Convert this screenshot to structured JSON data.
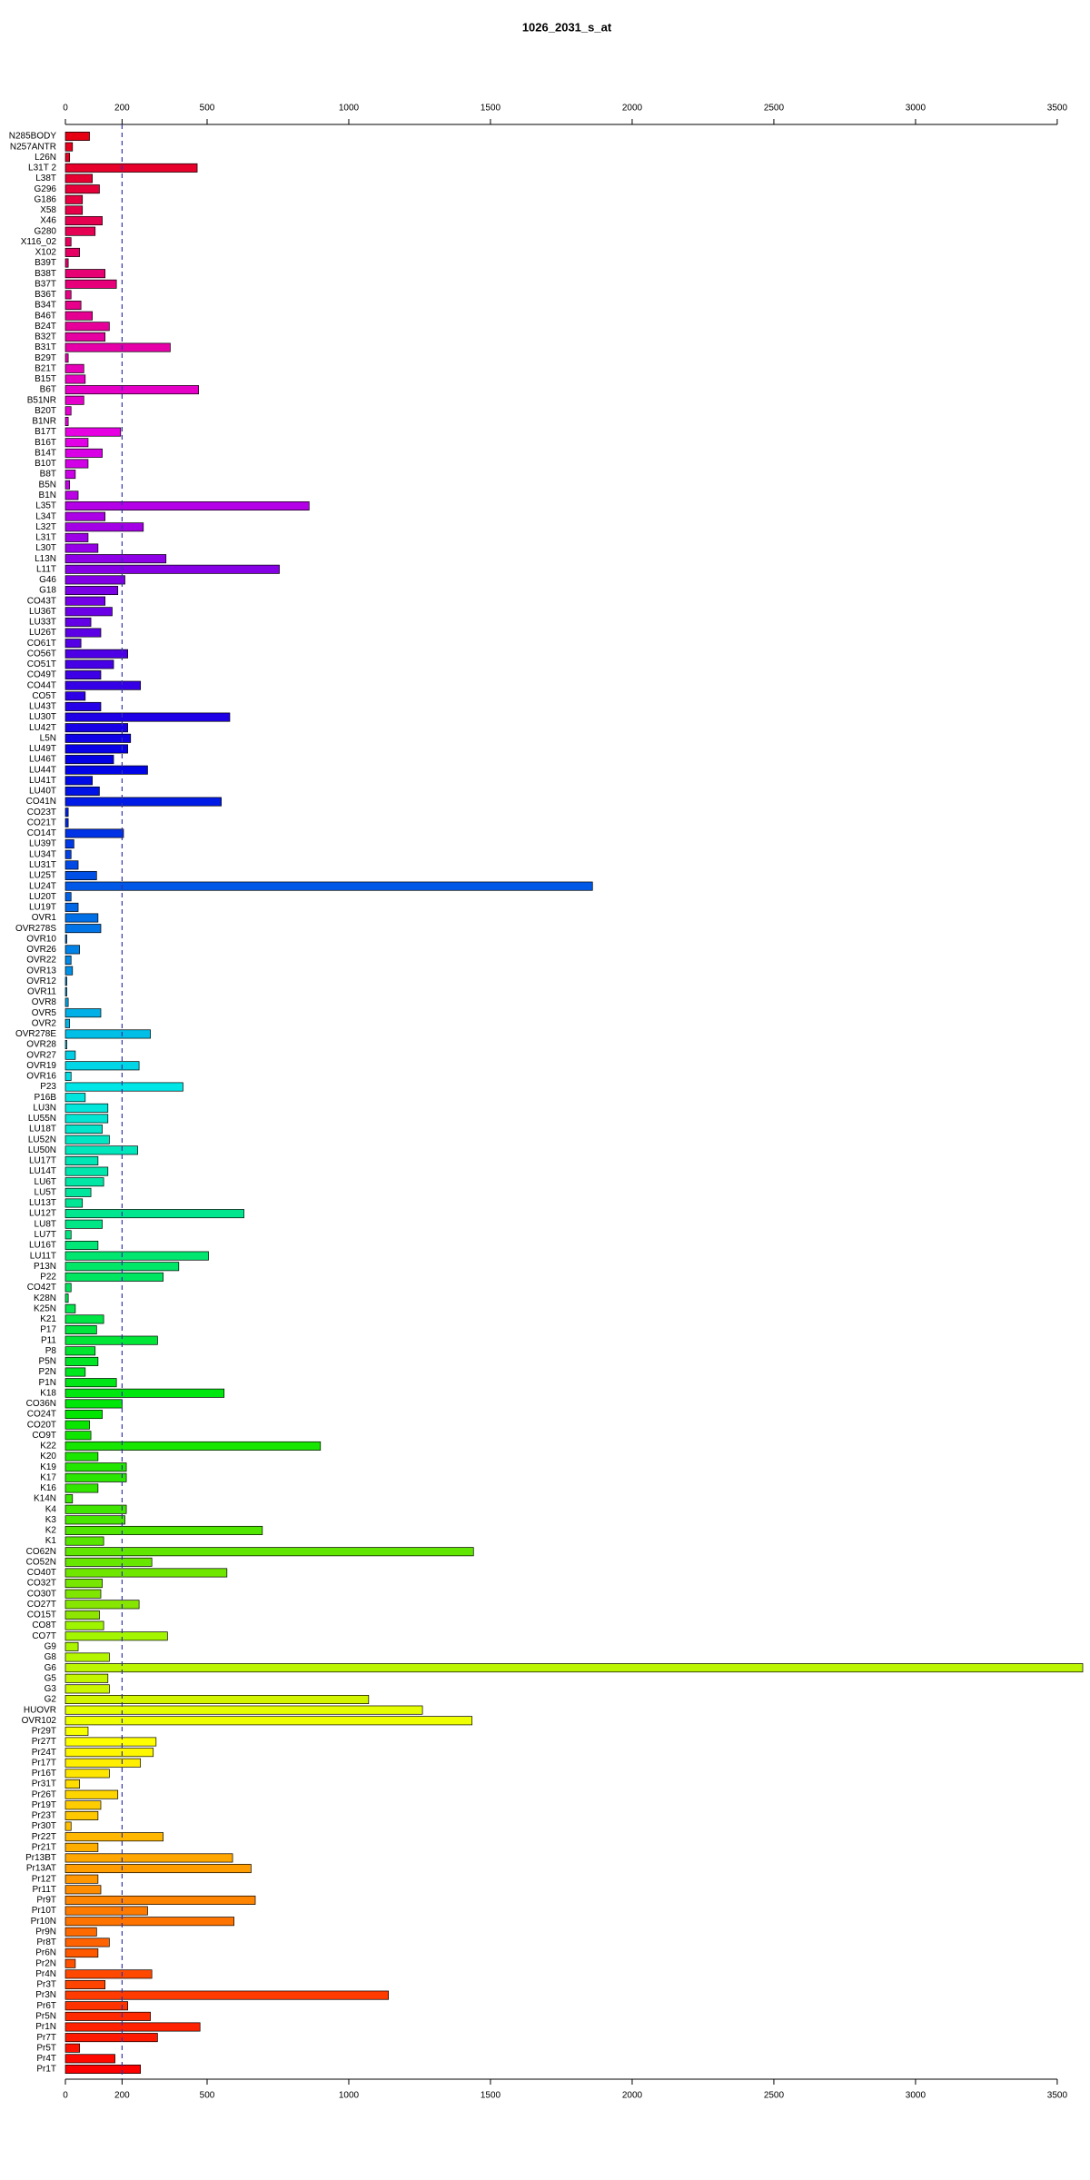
{
  "chart_data": {
    "type": "barh",
    "title": "1026_2031_s_at",
    "categories": [
      "N285BODY",
      "N257ANTR",
      "L26N",
      "L31T 2",
      "L38T",
      "G296",
      "G186",
      "X58",
      "X46",
      "G280",
      "X116_02",
      "X102",
      "B39T",
      "B38T",
      "B37T",
      "B36T",
      "B34T",
      "B46T",
      "B24T",
      "B32T",
      "B31T",
      "B29T",
      "B21T",
      "B15T",
      "B6T",
      "B51NR",
      "B20T",
      "B1NR",
      "B17T",
      "B16T",
      "B14T",
      "B10T",
      "B8T",
      "B5N",
      "B1N",
      "L35T",
      "L34T",
      "L32T",
      "L31T",
      "L30T",
      "L13N",
      "L11T",
      "G46",
      "G18",
      "CO43T",
      "LU36T",
      "LU33T",
      "LU26T",
      "CO61T",
      "CO56T",
      "CO51T",
      "CO49T",
      "CO44T",
      "CO5T",
      "LU43T",
      "LU30T",
      "LU42T",
      "L5N",
      "LU49T",
      "LU46T",
      "LU44T",
      "LU41T",
      "LU40T",
      "CO41N",
      "CO23T",
      "CO21T",
      "CO14T",
      "LU39T",
      "LU34T",
      "LU31T",
      "LU25T",
      "LU24T",
      "LU20T",
      "LU19T",
      "OVR1",
      "OVR278S",
      "OVR10",
      "OVR26",
      "OVR22",
      "OVR13",
      "OVR12",
      "OVR11",
      "OVR8",
      "OVR5",
      "OVR2",
      "OVR278E",
      "OVR28",
      "OVR27",
      "OVR19",
      "OVR16",
      "P23",
      "P16B",
      "LU3N",
      "LU55N",
      "LU18T",
      "LU52N",
      "LU50N",
      "LU17T",
      "LU14T",
      "LU6T",
      "LU5T",
      "LU13T",
      "LU12T",
      "LU8T",
      "LU7T",
      "LU16T",
      "LU11T",
      "P13N",
      "P22",
      "CO42T",
      "K28N",
      "K25N",
      "K21",
      "P17",
      "P11",
      "P8",
      "P5N",
      "P2N",
      "P1N",
      "K18",
      "CO36N",
      "CO24T",
      "CO20T",
      "CO9T",
      "K22",
      "K20",
      "K19",
      "K17",
      "K16",
      "K14N",
      "K4",
      "K3",
      "K2",
      "K1",
      "CO62N",
      "CO52N",
      "CO40T",
      "CO32T",
      "CO30T",
      "CO27T",
      "CO15T",
      "CO8T",
      "CO7T",
      "G9",
      "G8",
      "G6",
      "G5",
      "G3",
      "G2",
      "HUOVR",
      "OVR102",
      "Pr29T",
      "Pr27T",
      "Pr24T",
      "Pr17T",
      "Pr16T",
      "Pr31T",
      "Pr26T",
      "Pr19T",
      "Pr23T",
      "Pr30T",
      "Pr22T",
      "Pr21T",
      "Pr13BT",
      "Pr13AT",
      "Pr12T",
      "Pr11T",
      "Pr9T",
      "Pr10T",
      "Pr10N",
      "Pr9N",
      "Pr8T",
      "Pr6N",
      "Pr2N",
      "Pr4N",
      "Pr3T",
      "Pr3N",
      "Pr6T",
      "Pr5N",
      "Pr1N",
      "Pr7T",
      "Pr5T",
      "Pr4T",
      "Pr1T"
    ],
    "values": [
      85,
      25,
      15,
      465,
      95,
      120,
      60,
      60,
      130,
      105,
      20,
      50,
      10,
      140,
      180,
      20,
      55,
      95,
      155,
      140,
      370,
      10,
      65,
      70,
      470,
      65,
      20,
      10,
      195,
      80,
      130,
      80,
      35,
      15,
      45,
      860,
      140,
      275,
      80,
      115,
      355,
      755,
      210,
      185,
      140,
      165,
      90,
      125,
      55,
      220,
      170,
      125,
      265,
      70,
      125,
      580,
      220,
      230,
      220,
      170,
      290,
      95,
      120,
      550,
      10,
      10,
      205,
      30,
      20,
      45,
      110,
      1860,
      20,
      45,
      115,
      125,
      5,
      50,
      20,
      25,
      5,
      5,
      10,
      125,
      15,
      300,
      5,
      35,
      260,
      20,
      415,
      70,
      150,
      150,
      130,
      155,
      255,
      115,
      150,
      135,
      90,
      60,
      630,
      130,
      20,
      115,
      505,
      400,
      345,
      20,
      10,
      35,
      135,
      110,
      325,
      105,
      115,
      70,
      180,
      560,
      200,
      130,
      85,
      90,
      900,
      115,
      215,
      215,
      115,
      25,
      215,
      210,
      695,
      135,
      1440,
      305,
      570,
      130,
      125,
      260,
      120,
      135,
      360,
      45,
      155,
      3590,
      150,
      155,
      1070,
      1260,
      1435,
      80,
      320,
      310,
      265,
      155,
      50,
      185,
      125,
      115,
      20,
      345,
      115,
      590,
      655,
      115,
      125,
      670,
      290,
      595,
      110,
      155,
      115,
      35,
      305,
      140,
      1140,
      220,
      300,
      475,
      325,
      50,
      175,
      265
    ],
    "colors": [
      "hsl(355,100%,45%)",
      "hsl(353,100%,45%)",
      "hsl(351,100%,45%)",
      "hsl(349,100%,45%)",
      "hsl(347,100%,45%)",
      "hsl(345,100%,45%)",
      "hsl(343,100%,45%)",
      "hsl(341,100%,45%)",
      "hsl(339,100%,45%)",
      "hsl(338,100%,45%)",
      "hsl(336,100%,45%)",
      "hsl(334,100%,45%)",
      "hsl(332,100%,45%)",
      "hsl(330,100%,45%)",
      "hsl(328,100%,45%)",
      "hsl(326,100%,45%)",
      "hsl(324,100%,45%)",
      "hsl(322,100%,45%)",
      "hsl(320,100%,45%)",
      "hsl(318,100%,45%)",
      "hsl(316,100%,45%)",
      "hsl(314,100%,45%)",
      "hsl(312,100%,45%)",
      "hsl(310,100%,45%)",
      "hsl(308,100%,45%)",
      "hsl(307,100%,45%)",
      "hsl(305,100%,45%)",
      "hsl(303,100%,45%)",
      "hsl(301,100%,45%)",
      "hsl(299,100%,45%)",
      "hsl(297,100%,45%)",
      "hsl(295,100%,45%)",
      "hsl(293,100%,45%)",
      "hsl(291,100%,45%)",
      "hsl(289,100%,45%)",
      "hsl(287,100%,45%)",
      "hsl(285,100%,45%)",
      "hsl(283,100%,45%)",
      "hsl(281,100%,45%)",
      "hsl(279,100%,45%)",
      "hsl(277,100%,45%)",
      "hsl(275,100%,45%)",
      "hsl(274,100%,45%)",
      "hsl(272,100%,45%)",
      "hsl(270,100%,45%)",
      "hsl(268,100%,45%)",
      "hsl(266,100%,45%)",
      "hsl(264,100%,45%)",
      "hsl(262,100%,45%)",
      "hsl(260,100%,45%)",
      "hsl(258,100%,45%)",
      "hsl(256,100%,45%)",
      "hsl(254,100%,45%)",
      "hsl(252,100%,45%)",
      "hsl(250,100%,45%)",
      "hsl(248,100%,45%)",
      "hsl(246,100%,45%)",
      "hsl(244,100%,45%)",
      "hsl(242,100%,45%)",
      "hsl(241,100%,45%)",
      "hsl(239,100%,45%)",
      "hsl(237,100%,45%)",
      "hsl(235,100%,45%)",
      "hsl(233,100%,45%)",
      "hsl(231,100%,45%)",
      "hsl(229,100%,45%)",
      "hsl(227,100%,45%)",
      "hsl(225,100%,45%)",
      "hsl(223,100%,45%)",
      "hsl(221,100%,45%)",
      "hsl(219,100%,45%)",
      "hsl(217,100%,45%)",
      "hsl(215,100%,45%)",
      "hsl(213,100%,45%)",
      "hsl(211,100%,45%)",
      "hsl(210,100%,45%)",
      "hsl(208,100%,45%)",
      "hsl(206,100%,45%)",
      "hsl(204,100%,45%)",
      "hsl(202,100%,45%)",
      "hsl(200,100%,45%)",
      "hsl(198,100%,45%)",
      "hsl(196,100%,45%)",
      "hsl(194,100%,45%)",
      "hsl(192,100%,45%)",
      "hsl(190,100%,45%)",
      "hsl(188,100%,45%)",
      "hsl(186,100%,45%)",
      "hsl(184,100%,45%)",
      "hsl(182,100%,45%)",
      "hsl(180,100%,45%)",
      "hsl(178,100%,45%)",
      "hsl(177,100%,45%)",
      "hsl(175,100%,45%)",
      "hsl(173,100%,45%)",
      "hsl(171,100%,45%)",
      "hsl(169,100%,45%)",
      "hsl(167,100%,45%)",
      "hsl(165,100%,45%)",
      "hsl(163,100%,45%)",
      "hsl(161,100%,45%)",
      "hsl(159,100%,45%)",
      "hsl(157,100%,45%)",
      "hsl(155,100%,45%)",
      "hsl(153,100%,45%)",
      "hsl(151,100%,45%)",
      "hsl(149,100%,45%)",
      "hsl(147,100%,45%)",
      "hsl(145,100%,45%)",
      "hsl(144,100%,45%)",
      "hsl(142,100%,45%)",
      "hsl(140,100%,45%)",
      "hsl(138,100%,45%)",
      "hsl(136,100%,45%)",
      "hsl(134,100%,45%)",
      "hsl(132,100%,45%)",
      "hsl(130,100%,45%)",
      "hsl(128,100%,45%)",
      "hsl(126,100%,45%)",
      "hsl(124,100%,45%)",
      "hsl(122,100%,45%)",
      "hsl(120,100%,45%)",
      "hsl(118,100%,45%)",
      "hsl(116,100%,45%)",
      "hsl(114,100%,45%)",
      "hsl(113,100%,45%)",
      "hsl(111,100%,45%)",
      "hsl(109,100%,45%)",
      "hsl(107,100%,45%)",
      "hsl(105,100%,45%)",
      "hsl(103,100%,45%)",
      "hsl(101,100%,45%)",
      "hsl(99,100%,45%)",
      "hsl(97,100%,45%)",
      "hsl(95,100%,45%)",
      "hsl(93,100%,45%)",
      "hsl(91,100%,45%)",
      "hsl(89,100%,45%)",
      "hsl(87,100%,45%)",
      "hsl(85,100%,45%)",
      "hsl(83,100%,45%)",
      "hsl(81,100%,48%)",
      "hsl(80,100%,48%)",
      "hsl(78,100%,48%)",
      "hsl(76,100%,48%)",
      "hsl(74,100%,48%)",
      "hsl(72,100%,48%)",
      "hsl(70,100%,48%)",
      "hsl(68,100%,48%)",
      "hsl(66,100%,50%)",
      "hsl(64,100%,50%)",
      "hsl(62,100%,50%)",
      "hsl(60,100%,50%)",
      "hsl(58,100%,50%)",
      "hsl(56,100%,50%)",
      "hsl(54,100%,50%)",
      "hsl(52,100%,50%)",
      "hsl(50,100%,50%)",
      "hsl(48,100%,50%)",
      "hsl(47,100%,50%)",
      "hsl(45,100%,50%)",
      "hsl(43,100%,50%)",
      "hsl(41,100%,50%)",
      "hsl(39,100%,50%)",
      "hsl(37,100%,50%)",
      "hsl(35,100%,50%)",
      "hsl(33,100%,50%)",
      "hsl(31,100%,50%)",
      "hsl(29,100%,50%)",
      "hsl(27,100%,50%)",
      "hsl(25,100%,50%)",
      "hsl(23,100%,50%)",
      "hsl(21,100%,50%)",
      "hsl(19,100%,50%)",
      "hsl(17,100%,50%)",
      "hsl(16,100%,50%)",
      "hsl(14,100%,50%)",
      "hsl(12,100%,50%)",
      "hsl(10,100%,50%)",
      "hsl(8,100%,50%)",
      "hsl(6,100%,50%)",
      "hsl(4,100%,50%)",
      "hsl(2,100%,50%)",
      "hsl(0,100%,50%)"
    ],
    "xlim": [
      0,
      3590
    ],
    "xticks": [
      0,
      200,
      500,
      1000,
      1500,
      2000,
      2500,
      3000,
      3500
    ],
    "vline": 200
  }
}
